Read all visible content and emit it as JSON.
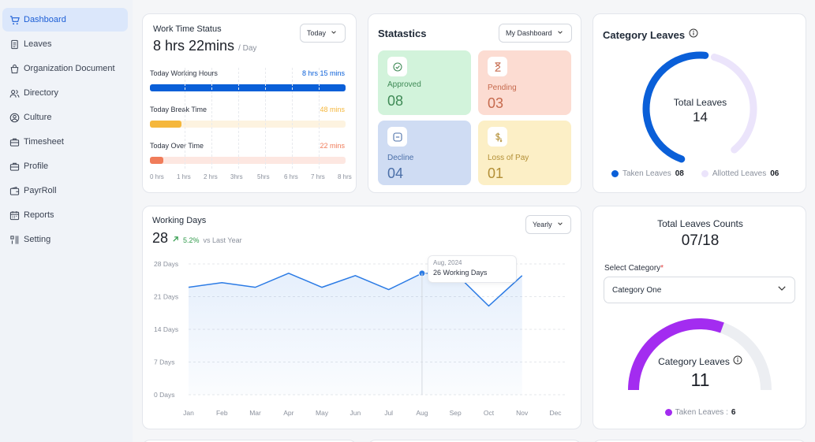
{
  "sidebar": {
    "items": [
      {
        "label": "Dashboard",
        "icon": "cart-icon",
        "active": true
      },
      {
        "label": "Leaves",
        "icon": "document-icon"
      },
      {
        "label": "Organization Document",
        "icon": "shopping-bag-icon"
      },
      {
        "label": "Directory",
        "icon": "users-icon"
      },
      {
        "label": "Culture",
        "icon": "user-circle-icon"
      },
      {
        "label": "Timesheet",
        "icon": "briefcase-icon"
      },
      {
        "label": "Profile",
        "icon": "briefcase-icon"
      },
      {
        "label": "PayrRoll",
        "icon": "wallet-icon"
      },
      {
        "label": "Reports",
        "icon": "calendar-icon"
      },
      {
        "label": "Setting",
        "icon": "settings-icon"
      }
    ]
  },
  "work_time": {
    "title": "Work Time Status",
    "total": "8 hrs 22mins",
    "per": "/ Day",
    "dropdown": "Today",
    "rows": [
      {
        "label": "Today Working Hours",
        "value": "8 hrs 15 mins",
        "fraction": 1.0,
        "color": "#0a5fd8",
        "track": "#e8eef8"
      },
      {
        "label": "Today Break Time",
        "value": "48 mins",
        "fraction": 0.16,
        "color": "#f5b73c",
        "track": "#fdf3e0"
      },
      {
        "label": "Today Over Time",
        "value": "22 mins",
        "fraction": 0.07,
        "color": "#f07c5a",
        "track": "#fde7e1"
      }
    ],
    "axis": [
      "0 hrs",
      "1 hrs",
      "2 hrs",
      "3hrs",
      "5hrs",
      "6 hrs",
      "7 hrs",
      "8 hrs"
    ]
  },
  "statistics": {
    "title": "Statastics",
    "dropdown": "My Dashboard",
    "tiles": [
      {
        "label": "Approved",
        "value": "08",
        "icon": "check-circle-icon",
        "bg": "#d2f3db",
        "color": "#3f8a56"
      },
      {
        "label": "Pending",
        "value": "03",
        "icon": "hourglass-icon",
        "bg": "#fcdcd2",
        "color": "#c66a4d"
      },
      {
        "label": "Decline",
        "value": "04",
        "icon": "minus-square-icon",
        "bg": "#cfdcf3",
        "color": "#4b6fa8"
      },
      {
        "label": "Loss of Pay",
        "value": "01",
        "icon": "dollar-down-icon",
        "bg": "#fcefc6",
        "color": "#b38f36"
      }
    ]
  },
  "category_leaves": {
    "title": "Category Leaves",
    "center_label": "Total Leaves",
    "center_value": "14",
    "taken_label": "Taken Leaves",
    "taken_value": "08",
    "allotted_label": "Allotted Leaves",
    "allotted_value": "06",
    "taken_color": "#0a5fd8",
    "allotted_color": "#ebe4fb"
  },
  "working_days": {
    "title": "Working Days",
    "value": "28",
    "trend": "5.2%",
    "trend_suffix": "vs Last Year",
    "dropdown": "Yearly",
    "tooltip_date": "Aug, 2024",
    "tooltip_value": "26 Working Days"
  },
  "chart_data": {
    "type": "area",
    "categories": [
      "Jan",
      "Feb",
      "Mar",
      "Apr",
      "May",
      "Jun",
      "Jul",
      "Aug",
      "Sep",
      "Oct",
      "Nov",
      "Dec"
    ],
    "values": [
      23,
      24,
      23,
      26,
      23,
      25.5,
      22.5,
      26,
      26,
      19,
      25.5,
      null
    ],
    "y_ticks": [
      "28 Days",
      "21 Days",
      "14 Days",
      "7 Days",
      "0 Days"
    ],
    "y_tick_values": [
      28,
      21,
      14,
      7,
      0
    ],
    "ylim": [
      0,
      28
    ],
    "highlight_index": 7,
    "line_color": "#2b7be5",
    "grid": true
  },
  "total_leaves_counts": {
    "title": "Total Leaves Counts",
    "value": "07/18",
    "select_label": "Select Category",
    "required_mark": "*",
    "select_value": "Category One",
    "gauge_label": "Category Leaves",
    "gauge_value": "11",
    "gauge_fraction": 0.61,
    "taken_label": "Taken Leaves : ",
    "taken_value": "6",
    "gauge_color": "#a32cf0",
    "gauge_track": "#eceef2"
  }
}
